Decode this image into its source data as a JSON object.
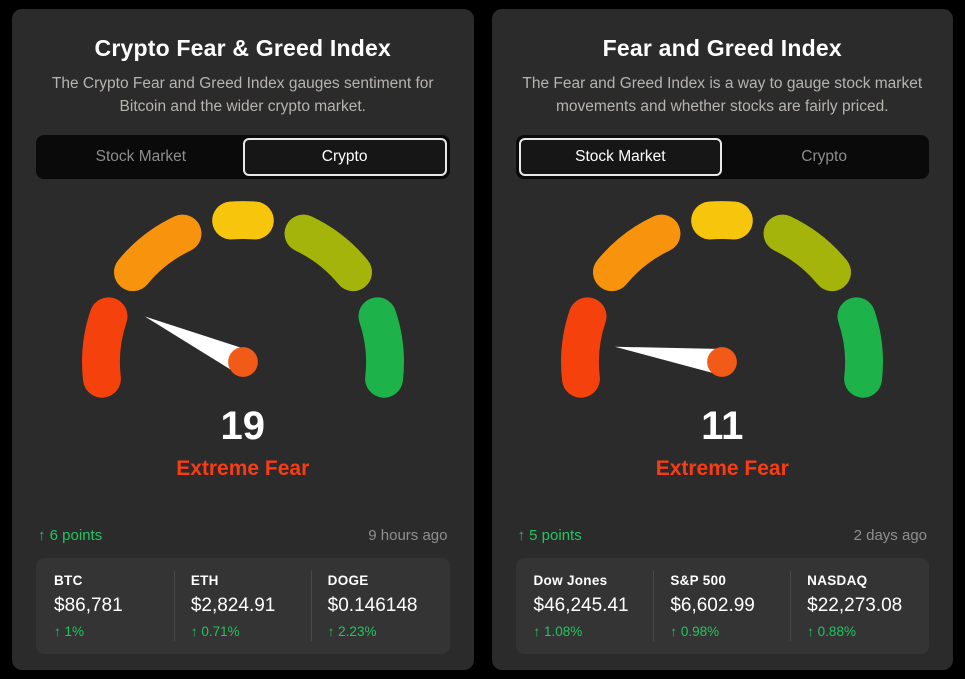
{
  "icons": {
    "arrow_up": "↑"
  },
  "colors": {
    "gauge_red": "#f5420d",
    "gauge_orange": "#f7930d",
    "gauge_yellow": "#f7c60c",
    "gauge_olive": "#a5b40b",
    "gauge_green": "#1eb34a",
    "needle_pivot": "#f25a18",
    "positive": "#22c55e",
    "sentiment": "#f83c15"
  },
  "chart_data": [
    {
      "type": "gauge",
      "title": "Crypto Fear & Greed Index",
      "value": 19,
      "range": [
        0,
        100
      ],
      "label": "Extreme Fear"
    },
    {
      "type": "gauge",
      "title": "Fear and Greed Index",
      "value": 11,
      "range": [
        0,
        100
      ],
      "label": "Extreme Fear"
    }
  ],
  "panels": [
    {
      "title": "Crypto Fear & Greed Index",
      "description": "The Crypto Fear and Greed Index gauges sentiment for Bitcoin and the wider crypto market.",
      "tabs": [
        {
          "label": "Stock Market",
          "selected": false
        },
        {
          "label": "Crypto",
          "selected": true
        }
      ],
      "gauge": {
        "value": 19,
        "label": "Extreme Fear"
      },
      "change": "6 points",
      "updated": "9 hours ago",
      "stats": [
        {
          "label": "BTC",
          "value": "$86,781",
          "change": "1%"
        },
        {
          "label": "ETH",
          "value": "$2,824.91",
          "change": "0.71%"
        },
        {
          "label": "DOGE",
          "value": "$0.146148",
          "change": "2.23%"
        }
      ]
    },
    {
      "title": "Fear and Greed Index",
      "description": "The Fear and Greed Index is a way to gauge stock market movements and whether stocks are fairly priced.",
      "tabs": [
        {
          "label": "Stock Market",
          "selected": true
        },
        {
          "label": "Crypto",
          "selected": false
        }
      ],
      "gauge": {
        "value": 11,
        "label": "Extreme Fear"
      },
      "change": "5 points",
      "updated": "2 days ago",
      "stats": [
        {
          "label": "Dow Jones",
          "value": "$46,245.41",
          "change": "1.08%"
        },
        {
          "label": "S&P 500",
          "value": "$6,602.99",
          "change": "0.98%"
        },
        {
          "label": "NASDAQ",
          "value": "$22,273.08",
          "change": "0.88%"
        }
      ]
    }
  ]
}
